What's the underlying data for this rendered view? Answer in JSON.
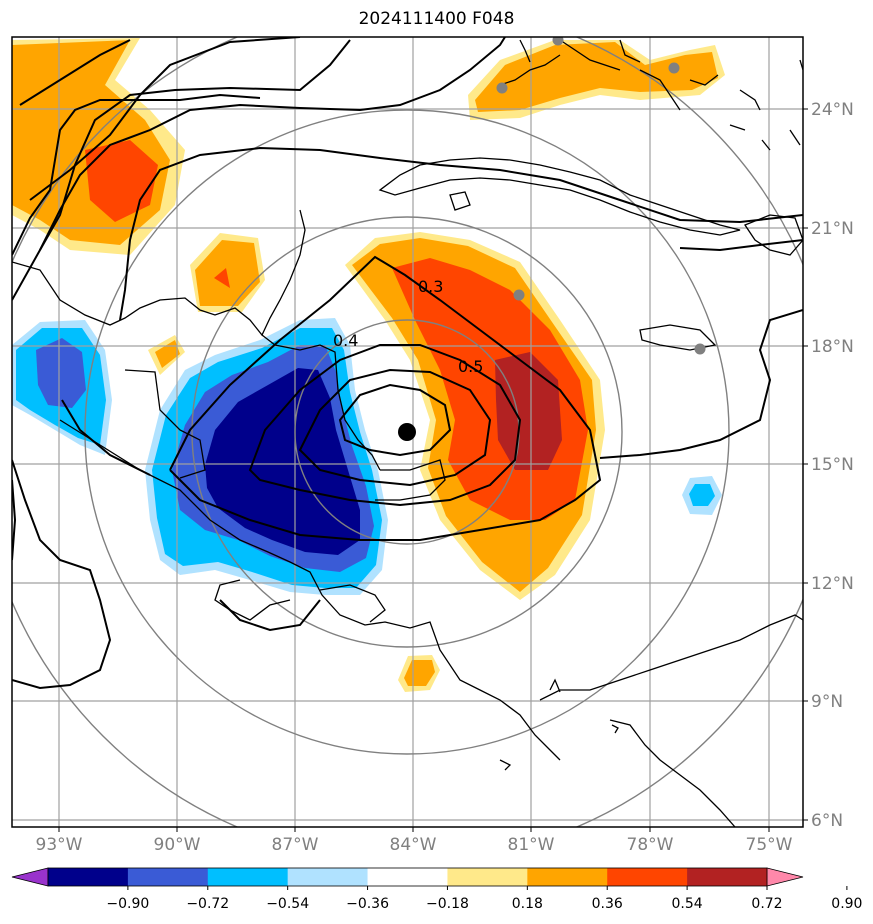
{
  "title": "2024111400 F048",
  "lon_labels": [
    "93°W",
    "90°W",
    "87°W",
    "84°W",
    "81°W",
    "78°W",
    "75°W"
  ],
  "lat_labels": [
    "24°N",
    "21°N",
    "18°N",
    "15°N",
    "12°N",
    "9°N",
    "6°N"
  ],
  "contour_labels": [
    "0.3",
    "0.5",
    "0.4"
  ],
  "colorbar": {
    "ticks": [
      "−0.90",
      "−0.72",
      "−0.54",
      "−0.36",
      "−0.18",
      "0.18",
      "0.36",
      "0.54",
      "0.72",
      "0.90"
    ],
    "colors": [
      "#9933cc",
      "#00008b",
      "#3a5bd6",
      "#00bfff",
      "#b0e2ff",
      "#ffffff",
      "#ffe98a",
      "#ffa500",
      "#ff4500",
      "#b22222",
      "#ff88aa"
    ]
  },
  "colors": {
    "grid": "#a0a0a0",
    "range_rings": "#808080",
    "coast": "#000000"
  }
}
